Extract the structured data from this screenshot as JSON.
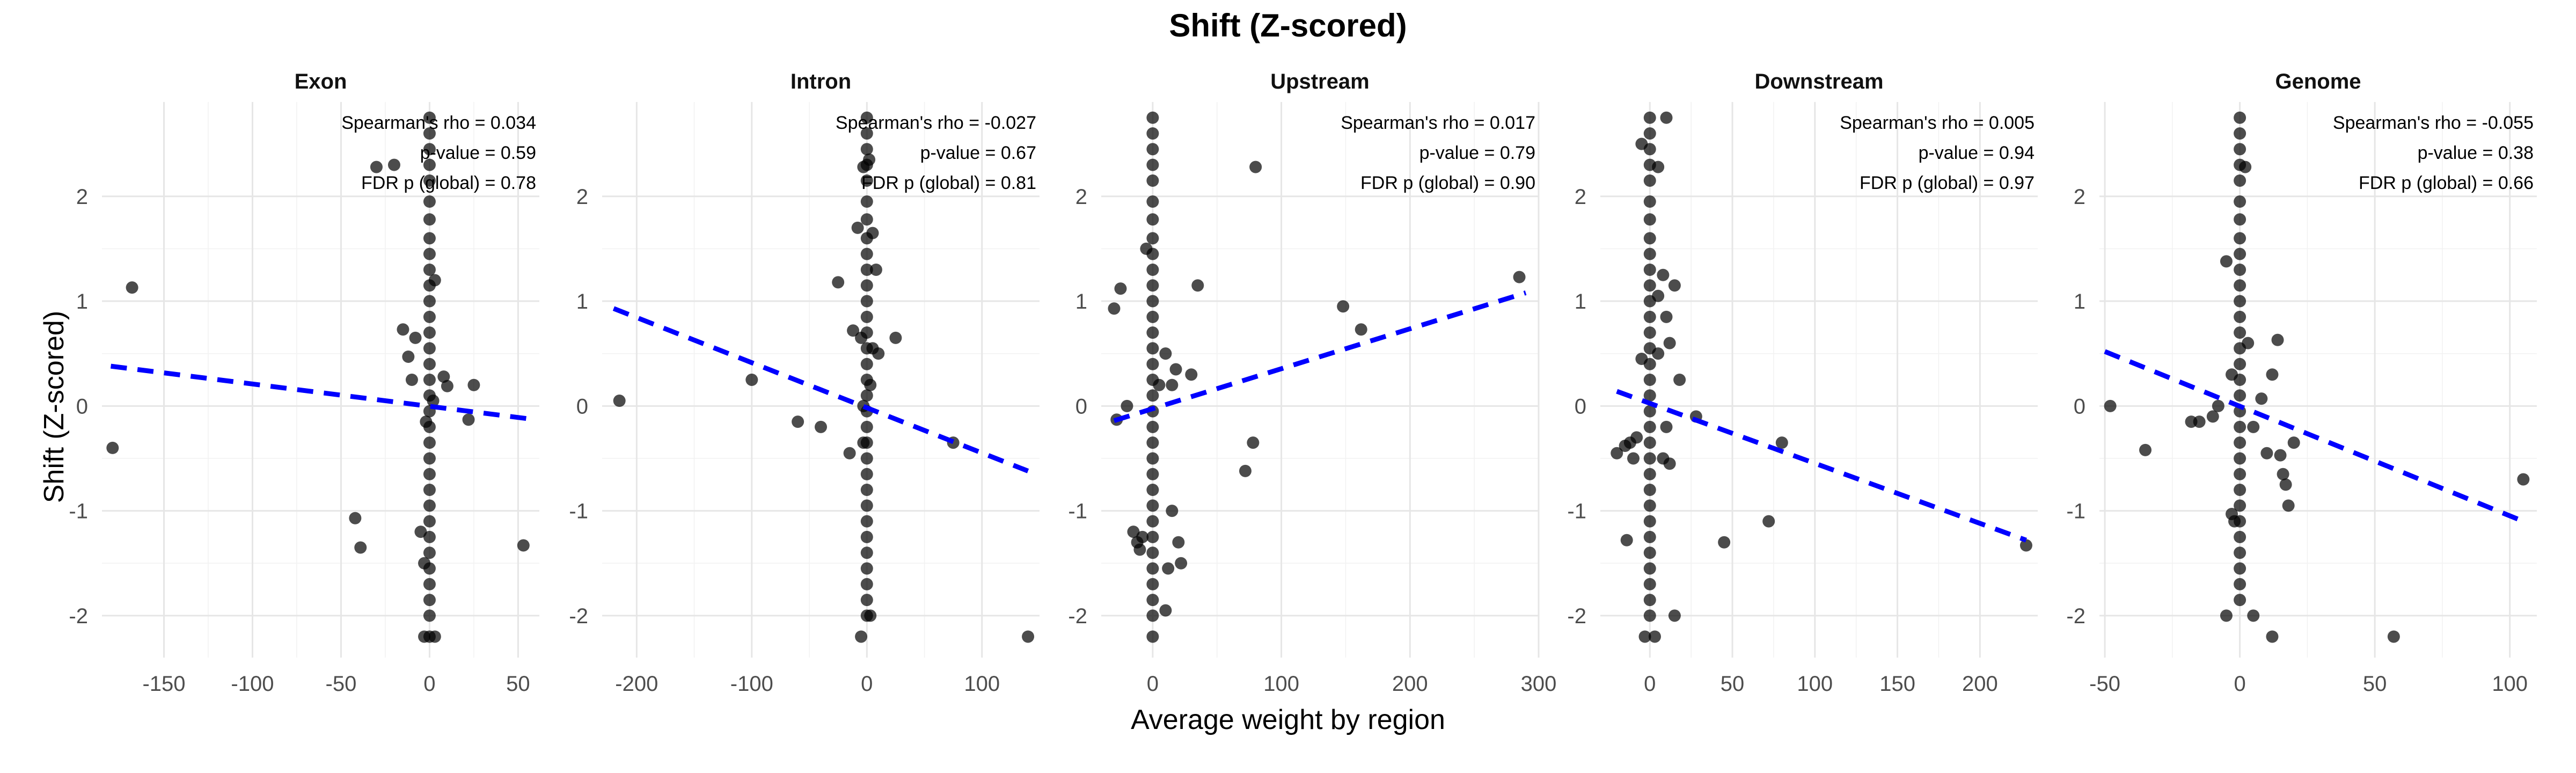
{
  "figure": {
    "title": "Shift (Z-scored)",
    "xlabel": "Average weight by region",
    "ylabel": "Shift (Z-scored)"
  },
  "chart_data": {
    "type": "scatter",
    "shared_y": true,
    "ylim": [
      -2.4,
      2.9
    ],
    "yticks": [
      -2,
      -1,
      0,
      1,
      2
    ],
    "grid": true,
    "trend_line_color": "#0000ff",
    "point_color": "#000000",
    "panels": [
      {
        "name": "Exon",
        "xlim": [
          -185,
          62
        ],
        "xticks": [
          -150,
          -100,
          -50,
          0,
          50
        ],
        "annotations": [
          "Spearman's rho = 0.034",
          "p-value = 0.59",
          "FDR p (global) = 0.78"
        ],
        "trend": {
          "x": [
            -180,
            55
          ],
          "y": [
            0.38,
            -0.12
          ]
        },
        "points": [
          [
            -168,
            1.13
          ],
          [
            -179,
            -0.4
          ],
          [
            -42,
            -1.07
          ],
          [
            -39,
            -1.35
          ],
          [
            -15,
            0.73
          ],
          [
            -12,
            0.47
          ],
          [
            -10,
            0.25
          ],
          [
            -8,
            0.65
          ],
          [
            -30,
            2.28
          ],
          [
            -20,
            2.3
          ],
          [
            8,
            0.28
          ],
          [
            10,
            0.19
          ],
          [
            25,
            0.2
          ],
          [
            22,
            -0.13
          ],
          [
            53,
            -1.33
          ],
          [
            -5,
            -1.2
          ],
          [
            -3,
            -1.5
          ],
          [
            3,
            -2.2
          ],
          [
            -3,
            -2.2
          ],
          [
            0,
            2.75
          ],
          [
            0,
            2.6
          ],
          [
            0,
            2.45
          ],
          [
            0,
            2.3
          ],
          [
            0,
            2.15
          ],
          [
            0,
            1.95
          ],
          [
            0,
            1.78
          ],
          [
            0,
            1.6
          ],
          [
            0,
            1.45
          ],
          [
            0,
            1.3
          ],
          [
            0,
            1.15
          ],
          [
            0,
            1.0
          ],
          [
            0,
            0.85
          ],
          [
            0,
            0.7
          ],
          [
            0,
            0.55
          ],
          [
            0,
            0.4
          ],
          [
            0,
            0.25
          ],
          [
            0,
            0.1
          ],
          [
            0,
            -0.05
          ],
          [
            0,
            -0.2
          ],
          [
            0,
            -0.35
          ],
          [
            0,
            -0.5
          ],
          [
            0,
            -0.65
          ],
          [
            0,
            -0.8
          ],
          [
            0,
            -0.95
          ],
          [
            0,
            -1.1
          ],
          [
            0,
            -1.25
          ],
          [
            0,
            -1.4
          ],
          [
            0,
            -1.55
          ],
          [
            0,
            -1.7
          ],
          [
            0,
            -1.85
          ],
          [
            0,
            -2.0
          ],
          [
            0,
            -2.2
          ],
          [
            2,
            0.05
          ],
          [
            -2,
            -0.15
          ],
          [
            3,
            1.2
          ]
        ]
      },
      {
        "name": "Intron",
        "xlim": [
          -230,
          150
        ],
        "xticks": [
          -200,
          -100,
          0,
          100
        ],
        "annotations": [
          "Spearman's rho = -0.027",
          "p-value = 0.67",
          "FDR p (global) = 0.81"
        ],
        "trend": {
          "x": [
            -220,
            140
          ],
          "y": [
            0.93,
            -0.62
          ]
        },
        "points": [
          [
            -215,
            0.05
          ],
          [
            -100,
            0.25
          ],
          [
            -60,
            -0.15
          ],
          [
            -40,
            -0.2
          ],
          [
            -25,
            1.18
          ],
          [
            -15,
            -0.45
          ],
          [
            -12,
            0.72
          ],
          [
            -8,
            1.7
          ],
          [
            -5,
            0.65
          ],
          [
            5,
            0.55
          ],
          [
            8,
            1.3
          ],
          [
            5,
            1.65
          ],
          [
            -3,
            2.28
          ],
          [
            2,
            2.35
          ],
          [
            25,
            0.65
          ],
          [
            10,
            0.5
          ],
          [
            75,
            -0.35
          ],
          [
            140,
            -2.2
          ],
          [
            -5,
            -2.2
          ],
          [
            3,
            -2.0
          ],
          [
            0,
            2.75
          ],
          [
            0,
            2.6
          ],
          [
            0,
            2.45
          ],
          [
            0,
            2.3
          ],
          [
            0,
            2.15
          ],
          [
            0,
            1.95
          ],
          [
            0,
            1.78
          ],
          [
            0,
            1.6
          ],
          [
            0,
            1.45
          ],
          [
            0,
            1.3
          ],
          [
            0,
            1.15
          ],
          [
            0,
            1.0
          ],
          [
            0,
            0.85
          ],
          [
            0,
            0.7
          ],
          [
            0,
            0.55
          ],
          [
            0,
            0.4
          ],
          [
            0,
            0.25
          ],
          [
            0,
            0.1
          ],
          [
            0,
            -0.05
          ],
          [
            0,
            -0.2
          ],
          [
            0,
            -0.35
          ],
          [
            0,
            -0.5
          ],
          [
            0,
            -0.65
          ],
          [
            0,
            -0.8
          ],
          [
            0,
            -0.95
          ],
          [
            0,
            -1.1
          ],
          [
            0,
            -1.25
          ],
          [
            0,
            -1.4
          ],
          [
            0,
            -1.55
          ],
          [
            0,
            -1.7
          ],
          [
            0,
            -1.85
          ],
          [
            0,
            -2.0
          ],
          [
            -3,
            0.0
          ],
          [
            3,
            0.2
          ],
          [
            -3,
            -0.35
          ]
        ]
      },
      {
        "name": "Upstream",
        "xlim": [
          -40,
          300
        ],
        "xticks": [
          0,
          100,
          200,
          300
        ],
        "annotations": [
          "Spearman's rho = 0.017",
          "p-value = 0.79",
          "FDR p (global) = 0.90"
        ],
        "trend": {
          "x": [
            -30,
            290
          ],
          "y": [
            -0.14,
            1.08
          ]
        },
        "points": [
          [
            -30,
            0.93
          ],
          [
            -25,
            1.12
          ],
          [
            -28,
            -0.13
          ],
          [
            -20,
            0.0
          ],
          [
            -15,
            -1.2
          ],
          [
            -12,
            -1.3
          ],
          [
            -10,
            -1.37
          ],
          [
            -8,
            -1.25
          ],
          [
            -5,
            1.5
          ],
          [
            5,
            0.2
          ],
          [
            10,
            0.5
          ],
          [
            15,
            0.2
          ],
          [
            18,
            0.35
          ],
          [
            12,
            -1.55
          ],
          [
            10,
            -1.95
          ],
          [
            20,
            -1.3
          ],
          [
            22,
            -1.5
          ],
          [
            15,
            -1.0
          ],
          [
            30,
            0.3
          ],
          [
            35,
            1.15
          ],
          [
            72,
            -0.62
          ],
          [
            78,
            -0.35
          ],
          [
            80,
            2.28
          ],
          [
            148,
            0.95
          ],
          [
            162,
            0.73
          ],
          [
            285,
            1.23
          ],
          [
            0,
            2.75
          ],
          [
            0,
            2.6
          ],
          [
            0,
            2.45
          ],
          [
            0,
            2.3
          ],
          [
            0,
            2.15
          ],
          [
            0,
            1.95
          ],
          [
            0,
            1.78
          ],
          [
            0,
            1.6
          ],
          [
            0,
            1.45
          ],
          [
            0,
            1.3
          ],
          [
            0,
            1.15
          ],
          [
            0,
            1.0
          ],
          [
            0,
            0.85
          ],
          [
            0,
            0.7
          ],
          [
            0,
            0.55
          ],
          [
            0,
            0.4
          ],
          [
            0,
            0.25
          ],
          [
            0,
            0.1
          ],
          [
            0,
            -0.05
          ],
          [
            0,
            -0.2
          ],
          [
            0,
            -0.35
          ],
          [
            0,
            -0.5
          ],
          [
            0,
            -0.65
          ],
          [
            0,
            -0.8
          ],
          [
            0,
            -0.95
          ],
          [
            0,
            -1.1
          ],
          [
            0,
            -1.25
          ],
          [
            0,
            -1.4
          ],
          [
            0,
            -1.55
          ],
          [
            0,
            -1.7
          ],
          [
            0,
            -1.85
          ],
          [
            0,
            -2.0
          ],
          [
            0,
            -2.2
          ]
        ]
      },
      {
        "name": "Downstream",
        "xlim": [
          -30,
          235
        ],
        "xticks": [
          0,
          50,
          100,
          150,
          200
        ],
        "annotations": [
          "Spearman's rho = 0.005",
          "p-value = 0.94",
          "FDR p (global) = 0.97"
        ],
        "trend": {
          "x": [
            -20,
            228
          ],
          "y": [
            0.14,
            -1.28
          ]
        },
        "points": [
          [
            -20,
            -0.45
          ],
          [
            -15,
            -0.38
          ],
          [
            -12,
            -0.35
          ],
          [
            -10,
            -0.5
          ],
          [
            -8,
            -0.3
          ],
          [
            -14,
            -1.28
          ],
          [
            -5,
            0.45
          ],
          [
            5,
            0.5
          ],
          [
            8,
            1.25
          ],
          [
            5,
            1.05
          ],
          [
            10,
            0.85
          ],
          [
            12,
            0.6
          ],
          [
            15,
            1.15
          ],
          [
            18,
            0.25
          ],
          [
            10,
            -0.2
          ],
          [
            12,
            -0.55
          ],
          [
            8,
            -0.5
          ],
          [
            15,
            -2.0
          ],
          [
            -3,
            -2.2
          ],
          [
            3,
            -2.2
          ],
          [
            28,
            -0.1
          ],
          [
            45,
            -1.3
          ],
          [
            72,
            -1.1
          ],
          [
            80,
            -0.35
          ],
          [
            228,
            -1.33
          ],
          [
            -5,
            2.5
          ],
          [
            5,
            2.28
          ],
          [
            0,
            2.75
          ],
          [
            0,
            2.6
          ],
          [
            0,
            2.45
          ],
          [
            0,
            2.3
          ],
          [
            0,
            2.15
          ],
          [
            0,
            1.95
          ],
          [
            0,
            1.78
          ],
          [
            0,
            1.6
          ],
          [
            0,
            1.45
          ],
          [
            0,
            1.3
          ],
          [
            0,
            1.15
          ],
          [
            0,
            1.0
          ],
          [
            0,
            0.85
          ],
          [
            0,
            0.7
          ],
          [
            0,
            0.55
          ],
          [
            0,
            0.4
          ],
          [
            0,
            0.25
          ],
          [
            0,
            0.1
          ],
          [
            0,
            -0.05
          ],
          [
            0,
            -0.2
          ],
          [
            0,
            -0.35
          ],
          [
            0,
            -0.5
          ],
          [
            0,
            -0.65
          ],
          [
            0,
            -0.8
          ],
          [
            0,
            -0.95
          ],
          [
            0,
            -1.1
          ],
          [
            0,
            -1.25
          ],
          [
            0,
            -1.4
          ],
          [
            0,
            -1.55
          ],
          [
            0,
            -1.7
          ],
          [
            0,
            -1.85
          ],
          [
            0,
            -2.0
          ],
          [
            10,
            2.75
          ]
        ]
      },
      {
        "name": "Genome",
        "xlim": [
          -52,
          110
        ],
        "xticks": [
          -50,
          0,
          50,
          100
        ],
        "annotations": [
          "Spearman's rho = -0.055",
          "p-value = 0.38",
          "FDR p (global) = 0.66"
        ],
        "trend": {
          "x": [
            -50,
            105
          ],
          "y": [
            0.52,
            -1.1
          ]
        },
        "points": [
          [
            -48,
            0.0
          ],
          [
            -35,
            -0.42
          ],
          [
            -18,
            -0.15
          ],
          [
            -15,
            -0.15
          ],
          [
            -10,
            -0.1
          ],
          [
            -8,
            0.0
          ],
          [
            -5,
            1.38
          ],
          [
            -3,
            0.3
          ],
          [
            -2,
            -1.1
          ],
          [
            -3,
            -1.03
          ],
          [
            2,
            2.28
          ],
          [
            3,
            0.6
          ],
          [
            5,
            -0.2
          ],
          [
            8,
            0.07
          ],
          [
            10,
            -0.45
          ],
          [
            12,
            0.3
          ],
          [
            14,
            0.63
          ],
          [
            15,
            -0.47
          ],
          [
            16,
            -0.65
          ],
          [
            17,
            -0.75
          ],
          [
            18,
            -0.95
          ],
          [
            20,
            -0.35
          ],
          [
            12,
            -2.2
          ],
          [
            -5,
            -2.0
          ],
          [
            5,
            -2.0
          ],
          [
            57,
            -2.2
          ],
          [
            105,
            -0.7
          ],
          [
            0,
            2.75
          ],
          [
            0,
            2.6
          ],
          [
            0,
            2.45
          ],
          [
            0,
            2.3
          ],
          [
            0,
            2.15
          ],
          [
            0,
            1.95
          ],
          [
            0,
            1.78
          ],
          [
            0,
            1.6
          ],
          [
            0,
            1.45
          ],
          [
            0,
            1.3
          ],
          [
            0,
            1.15
          ],
          [
            0,
            1.0
          ],
          [
            0,
            0.85
          ],
          [
            0,
            0.7
          ],
          [
            0,
            0.55
          ],
          [
            0,
            0.4
          ],
          [
            0,
            0.25
          ],
          [
            0,
            0.1
          ],
          [
            0,
            -0.05
          ],
          [
            0,
            -0.2
          ],
          [
            0,
            -0.35
          ],
          [
            0,
            -0.5
          ],
          [
            0,
            -0.65
          ],
          [
            0,
            -0.8
          ],
          [
            0,
            -0.95
          ],
          [
            0,
            -1.1
          ],
          [
            0,
            -1.25
          ],
          [
            0,
            -1.4
          ],
          [
            0,
            -1.55
          ],
          [
            0,
            -1.7
          ],
          [
            0,
            -1.85
          ]
        ]
      }
    ]
  }
}
